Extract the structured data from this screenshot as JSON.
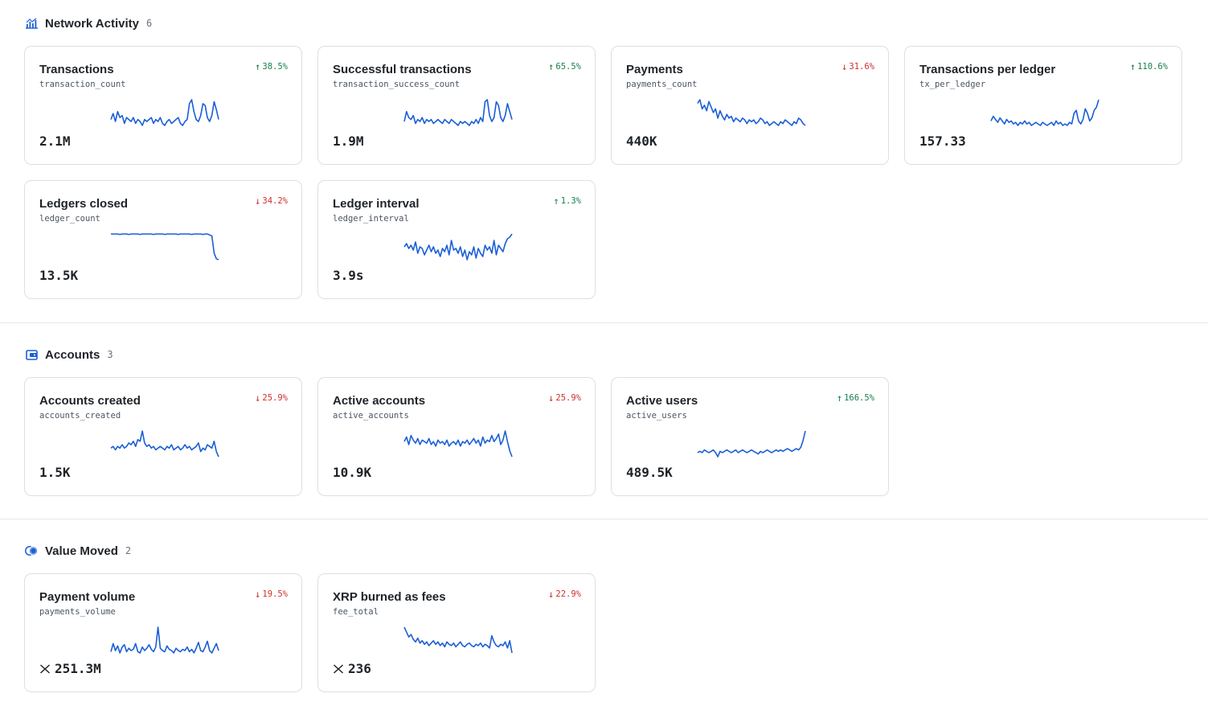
{
  "colors": {
    "accent": "#1a5fd6",
    "up": "#16804a",
    "down": "#cf2e2e",
    "border": "#dcdfe4"
  },
  "sections": [
    {
      "title": "Network Activity",
      "count": "6",
      "icon": "chart-bars-icon",
      "cards": [
        {
          "title": "Transactions",
          "key": "transaction_count",
          "delta": "38.5%",
          "direction": "up",
          "value": "2.1M",
          "prefix": "",
          "spark": [
            4,
            7,
            3,
            8,
            5,
            6,
            2,
            5,
            4,
            3,
            5,
            2,
            4,
            3,
            1,
            4,
            3,
            4,
            5,
            2,
            4,
            3,
            5,
            2,
            1,
            3,
            4,
            2,
            3,
            4,
            5,
            2,
            1,
            3,
            4,
            12,
            14,
            8,
            4,
            3,
            6,
            12,
            11,
            5,
            3,
            6,
            13,
            9,
            4
          ]
        },
        {
          "title": "Successful transactions",
          "key": "transaction_success_count",
          "delta": "65.5%",
          "direction": "up",
          "value": "1.9M",
          "prefix": "",
          "spark": [
            3,
            8,
            5,
            4,
            6,
            2,
            4,
            3,
            5,
            2,
            4,
            3,
            4,
            2,
            3,
            4,
            3,
            2,
            4,
            3,
            2,
            4,
            3,
            2,
            1,
            3,
            2,
            3,
            2,
            1,
            3,
            2,
            4,
            2,
            5,
            3,
            13,
            14,
            6,
            3,
            5,
            13,
            11,
            5,
            3,
            6,
            12,
            8,
            4
          ]
        },
        {
          "title": "Payments",
          "key": "payments_count",
          "delta": "31.6%",
          "direction": "down",
          "value": "440K",
          "prefix": "",
          "spark": [
            14,
            16,
            11,
            13,
            10,
            15,
            12,
            9,
            11,
            6,
            10,
            7,
            5,
            8,
            6,
            7,
            4,
            6,
            5,
            4,
            6,
            5,
            3,
            5,
            4,
            5,
            3,
            4,
            6,
            5,
            3,
            4,
            2,
            3,
            4,
            3,
            2,
            4,
            3,
            5,
            4,
            3,
            2,
            4,
            3,
            6,
            5,
            3,
            2
          ]
        },
        {
          "title": "Transactions per ledger",
          "key": "tx_per_ledger",
          "delta": "110.6%",
          "direction": "up",
          "value": "157.33",
          "prefix": "",
          "spark": [
            5,
            8,
            6,
            4,
            7,
            5,
            3,
            6,
            4,
            5,
            3,
            4,
            2,
            4,
            3,
            5,
            3,
            4,
            2,
            3,
            4,
            3,
            2,
            4,
            3,
            2,
            3,
            4,
            2,
            5,
            3,
            4,
            2,
            3,
            2,
            4,
            3,
            10,
            12,
            5,
            3,
            6,
            13,
            10,
            5,
            7,
            12,
            14,
            19
          ]
        }
      ]
    },
    {
      "title": "",
      "count": "",
      "icon": "",
      "cards": [
        {
          "title": "Ledgers closed",
          "key": "ledger_count",
          "delta": "34.2%",
          "direction": "down",
          "value": "13.5K",
          "prefix": "",
          "spark": [
            30,
            30,
            30,
            30,
            29.5,
            30,
            30,
            30,
            29.5,
            30,
            30,
            30,
            30,
            29.5,
            30,
            30,
            30,
            30,
            30,
            29.5,
            30,
            30,
            30,
            30,
            29.5,
            30,
            30,
            30,
            30,
            30,
            29.5,
            30,
            30,
            30,
            30,
            30,
            29.5,
            30,
            30,
            30,
            30,
            29.5,
            30,
            30,
            29,
            28,
            10,
            4,
            3
          ]
        },
        {
          "title": "Ledger interval",
          "key": "ledger_interval",
          "delta": "1.3%",
          "direction": "up",
          "value": "3.9s",
          "prefix": "",
          "spark": [
            14,
            16,
            13,
            15,
            12,
            17,
            10,
            14,
            13,
            9,
            12,
            15,
            11,
            14,
            10,
            12,
            8,
            13,
            11,
            15,
            9,
            18,
            12,
            13,
            10,
            14,
            8,
            12,
            6,
            11,
            9,
            14,
            7,
            13,
            10,
            8,
            15,
            12,
            14,
            10,
            18,
            9,
            15,
            13,
            11,
            16,
            19,
            20,
            22
          ]
        }
      ]
    }
  ],
  "sections2": [
    {
      "title": "Accounts",
      "count": "3",
      "icon": "wallet-icon",
      "cards": [
        {
          "title": "Accounts created",
          "key": "accounts_created",
          "delta": "25.9%",
          "direction": "down",
          "value": "1.5K",
          "prefix": "",
          "spark": [
            8,
            9,
            7,
            9,
            8,
            10,
            8,
            9,
            11,
            10,
            12,
            9,
            13,
            12,
            18,
            11,
            9,
            10,
            8,
            9,
            7,
            8,
            9,
            8,
            7,
            9,
            8,
            10,
            7,
            8,
            9,
            7,
            8,
            10,
            8,
            9,
            7,
            8,
            9,
            11,
            6,
            8,
            7,
            10,
            9,
            8,
            12,
            6,
            3
          ]
        },
        {
          "title": "Active accounts",
          "key": "active_accounts",
          "delta": "25.9%",
          "direction": "down",
          "value": "10.9K",
          "prefix": "",
          "spark": [
            12,
            15,
            10,
            16,
            13,
            11,
            14,
            10,
            13,
            12,
            11,
            14,
            10,
            12,
            9,
            13,
            11,
            12,
            10,
            13,
            9,
            11,
            12,
            10,
            13,
            9,
            12,
            11,
            13,
            10,
            12,
            14,
            11,
            13,
            9,
            15,
            11,
            13,
            12,
            16,
            12,
            14,
            17,
            10,
            13,
            19,
            12,
            6,
            2
          ]
        },
        {
          "title": "Active users",
          "key": "active_users",
          "delta": "166.5%",
          "direction": "up",
          "value": "489.5K",
          "prefix": "",
          "spark": [
            6,
            7,
            6,
            8,
            7,
            6,
            7,
            8,
            6,
            3,
            7,
            6,
            7,
            8,
            7,
            6,
            7,
            8,
            6,
            7,
            8,
            7,
            6,
            7,
            8,
            7,
            6,
            5,
            7,
            6,
            7,
            8,
            7,
            6,
            7,
            8,
            7,
            8,
            7,
            8,
            9,
            8,
            7,
            8,
            9,
            8,
            10,
            15,
            22
          ]
        }
      ]
    },
    {
      "title": "Value Moved",
      "count": "2",
      "icon": "coins-icon",
      "cards": [
        {
          "title": "Payment volume",
          "key": "payments_volume",
          "delta": "19.5%",
          "direction": "down",
          "value": "251.3M",
          "prefix": "xrp",
          "spark": [
            5,
            12,
            6,
            10,
            4,
            9,
            11,
            5,
            8,
            6,
            7,
            12,
            5,
            4,
            9,
            6,
            8,
            11,
            7,
            5,
            9,
            26,
            8,
            6,
            5,
            10,
            7,
            6,
            4,
            8,
            6,
            5,
            7,
            6,
            9,
            5,
            7,
            4,
            8,
            13,
            6,
            5,
            9,
            14,
            6,
            4,
            8,
            12,
            6
          ]
        },
        {
          "title": "XRP burned as fees",
          "key": "fee_total",
          "delta": "22.9%",
          "direction": "down",
          "value": "236",
          "prefix": "xrp",
          "spark": [
            24,
            20,
            16,
            18,
            14,
            12,
            15,
            11,
            13,
            10,
            12,
            9,
            11,
            13,
            10,
            12,
            9,
            11,
            8,
            12,
            10,
            9,
            11,
            8,
            10,
            12,
            9,
            8,
            10,
            11,
            9,
            8,
            10,
            9,
            11,
            8,
            10,
            9,
            7,
            17,
            12,
            9,
            8,
            10,
            9,
            12,
            7,
            13,
            3
          ]
        }
      ]
    }
  ]
}
